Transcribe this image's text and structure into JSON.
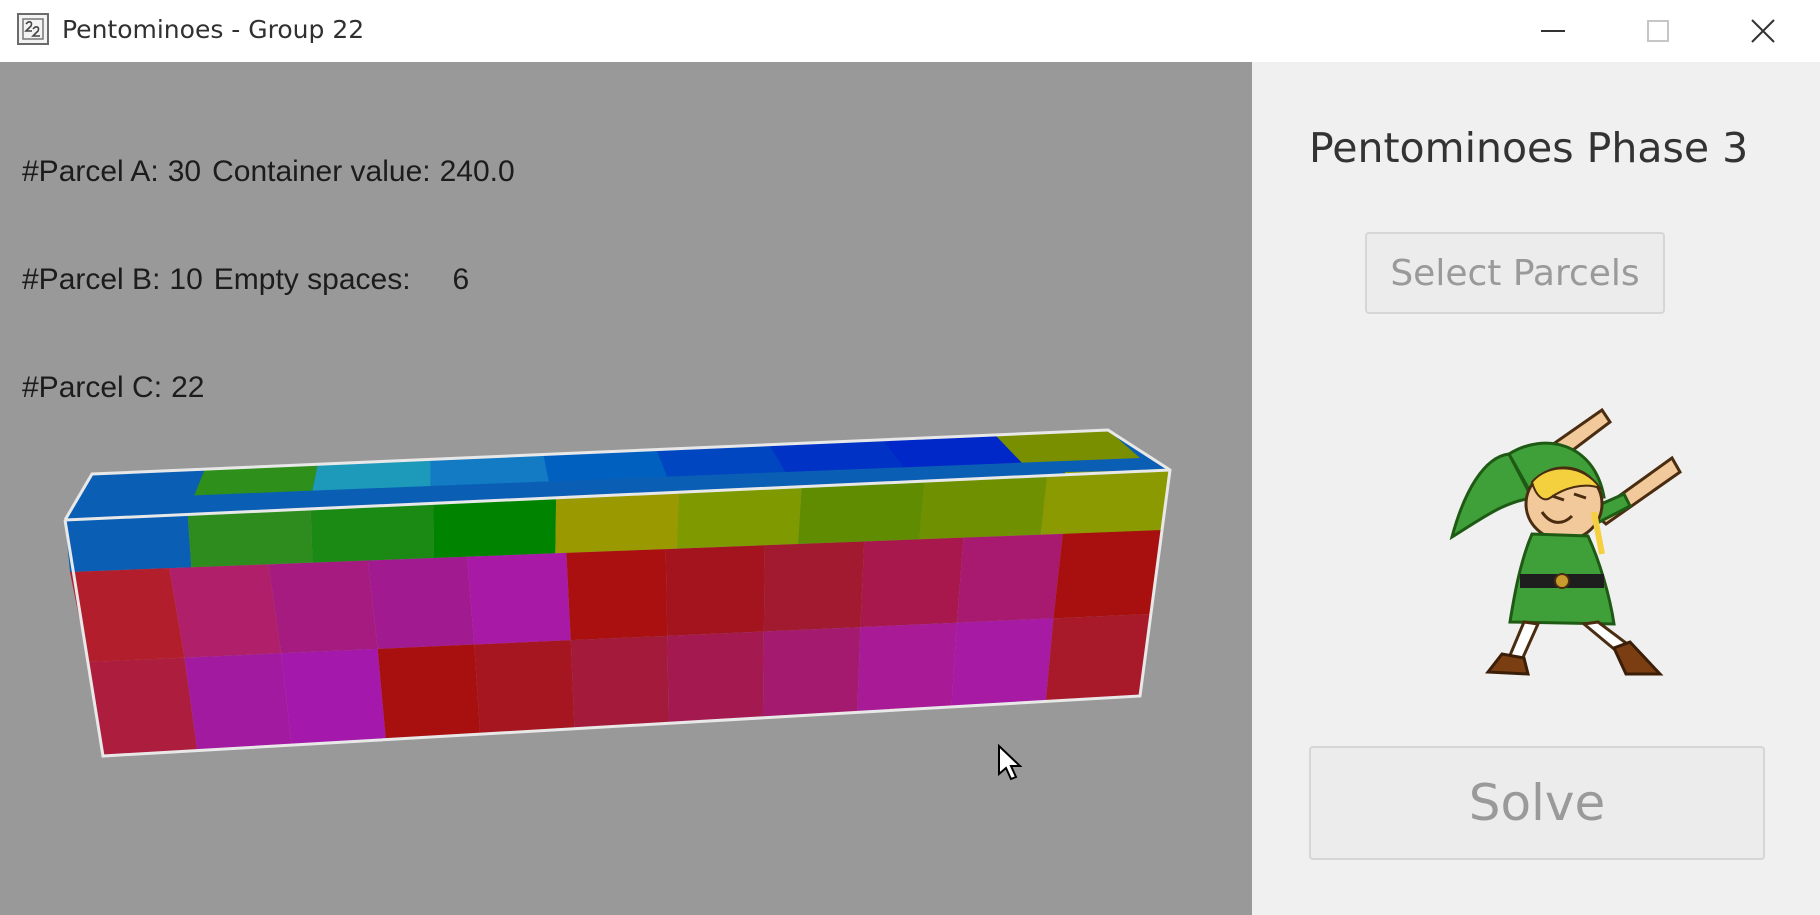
{
  "window": {
    "title": "Pentominoes - Group 22",
    "icon": "app-window-icon",
    "controls": [
      "minimize-icon",
      "maximize-icon",
      "close-icon"
    ]
  },
  "stats": {
    "parcel_a_label": "#Parcel A:",
    "parcel_a_value": "30",
    "parcel_b_label": "#Parcel B:",
    "parcel_b_value": "10",
    "parcel_c_label": "#Parcel C:",
    "parcel_c_value": "22",
    "container_value_label": "Container value:",
    "container_value": "240.0",
    "empty_spaces_label": "Empty spaces:",
    "empty_spaces_value": "6"
  },
  "panel": {
    "title": "Pentominoes Phase 3",
    "select_button_label": "Select Parcels",
    "solve_button_label": "Solve",
    "mascot": "dabbing-elf-illustration"
  },
  "colors": {
    "viewport_bg": "#999999",
    "panel_bg": "#f0f0f0",
    "disabled_text": "#9a9a9a"
  },
  "container_view": {
    "top_row_colors": [
      "#0a5fb4",
      "#2e8f1a",
      "#1d9ab9",
      "#137ac4",
      "#0060c0",
      "#0046c0",
      "#0033c5",
      "#0028c8",
      "#7a8f00"
    ],
    "middle_row_colors": [
      "#0a5fb4",
      "#2e8c1e",
      "#1a8a14",
      "#008400",
      "#9a9a00",
      "#7f9a00",
      "#5f8c00",
      "#6f9000",
      "#8a9a00"
    ],
    "front_row_1_colors": [
      "#b31e2c",
      "#b0206a",
      "#a51b80",
      "#a21a90",
      "#a81aa6",
      "#aa1010",
      "#a4141e",
      "#a11a30",
      "#a8184c",
      "#a81a70",
      "#a81010"
    ],
    "front_row_2_colors": [
      "#ad1e3e",
      "#a21aa0",
      "#a418ac",
      "#a81010",
      "#a51620",
      "#a31a3a",
      "#a41a50",
      "#a41a6e",
      "#a81a96",
      "#a61aa4",
      "#a81a2a"
    ]
  }
}
